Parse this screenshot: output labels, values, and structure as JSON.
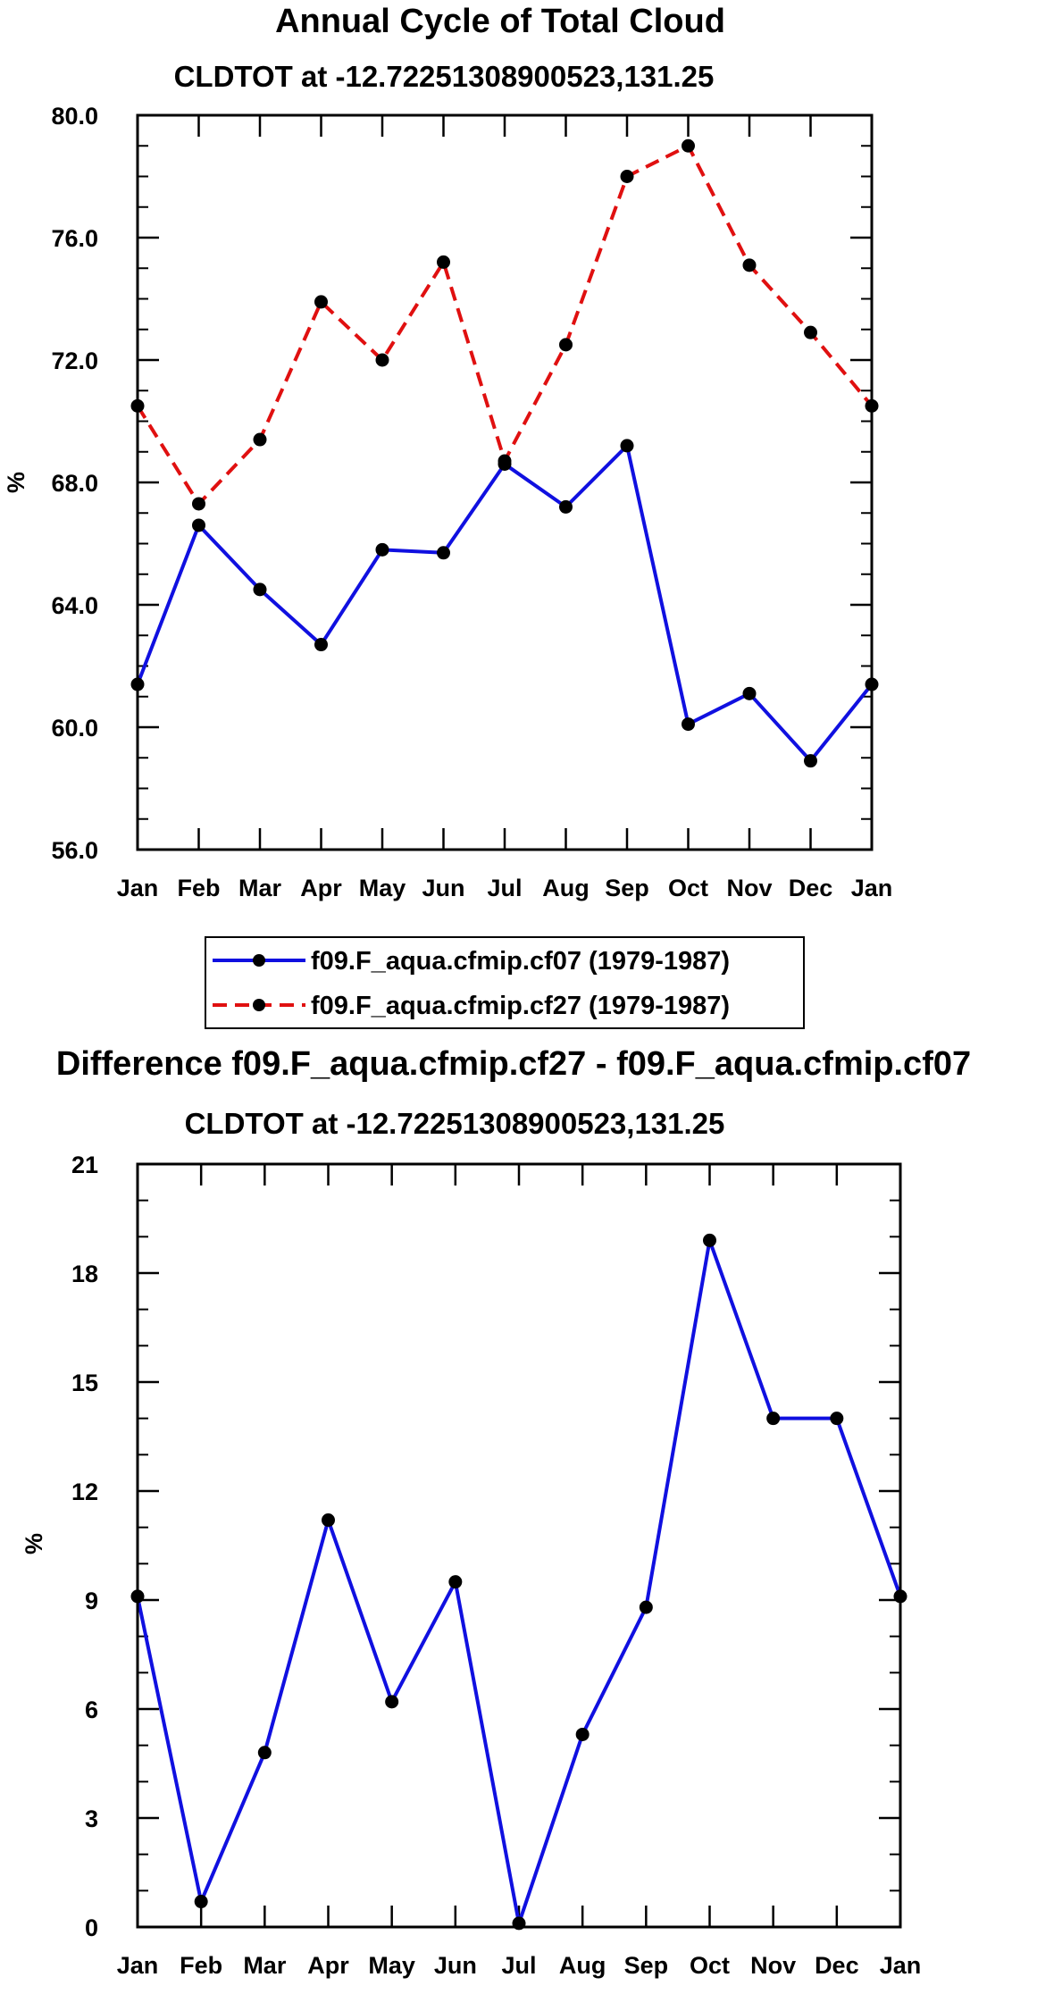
{
  "chart_data": [
    {
      "type": "line",
      "title": "Annual Cycle of Total Cloud",
      "subtitle": "CLDTOT at -12.72251308900523,131.25",
      "xlabel": "",
      "ylabel": "%",
      "categories": [
        "Jan",
        "Feb",
        "Mar",
        "Apr",
        "May",
        "Jun",
        "Jul",
        "Aug",
        "Sep",
        "Oct",
        "Nov",
        "Dec",
        "Jan"
      ],
      "ylim": [
        56,
        80
      ],
      "y_ticks": [
        "56.0",
        "60.0",
        "64.0",
        "68.0",
        "72.0",
        "76.0",
        "80.0"
      ],
      "y_tick_values": [
        56,
        60,
        64,
        68,
        72,
        76,
        80
      ],
      "y_minor_step": 1,
      "grid": false,
      "legend_position": "bottom",
      "series": [
        {
          "name": "f09.F_aqua.cfmip.cf07 (1979-1987)",
          "color": "#1010e0",
          "dash": "solid",
          "values": [
            61.4,
            66.6,
            64.5,
            62.7,
            65.8,
            65.7,
            68.6,
            67.2,
            69.2,
            60.1,
            61.1,
            58.9,
            61.4
          ]
        },
        {
          "name": "f09.F_aqua.cfmip.cf27 (1979-1987)",
          "color": "#e01010",
          "dash": "dashed",
          "values": [
            70.5,
            67.3,
            69.4,
            73.9,
            72.0,
            75.2,
            68.7,
            72.5,
            78.0,
            79.0,
            75.1,
            72.9,
            70.5
          ]
        }
      ]
    },
    {
      "type": "line",
      "title": "Difference f09.F_aqua.cfmip.cf27 - f09.F_aqua.cfmip.cf07",
      "subtitle": "CLDTOT at -12.72251308900523,131.25",
      "xlabel": "",
      "ylabel": "%",
      "categories": [
        "Jan",
        "Feb",
        "Mar",
        "Apr",
        "May",
        "Jun",
        "Jul",
        "Aug",
        "Sep",
        "Oct",
        "Nov",
        "Dec",
        "Jan"
      ],
      "ylim": [
        0,
        21
      ],
      "y_ticks": [
        "0",
        "3",
        "6",
        "9",
        "12",
        "15",
        "18",
        "21"
      ],
      "y_tick_values": [
        0,
        3,
        6,
        9,
        12,
        15,
        18,
        21
      ],
      "y_minor_step": 1,
      "grid": false,
      "series": [
        {
          "name": "Difference",
          "color": "#1010e0",
          "dash": "solid",
          "values": [
            9.1,
            0.7,
            4.8,
            11.2,
            6.2,
            9.5,
            0.1,
            5.3,
            8.8,
            18.9,
            14.0,
            14.0,
            9.1
          ]
        }
      ]
    }
  ]
}
